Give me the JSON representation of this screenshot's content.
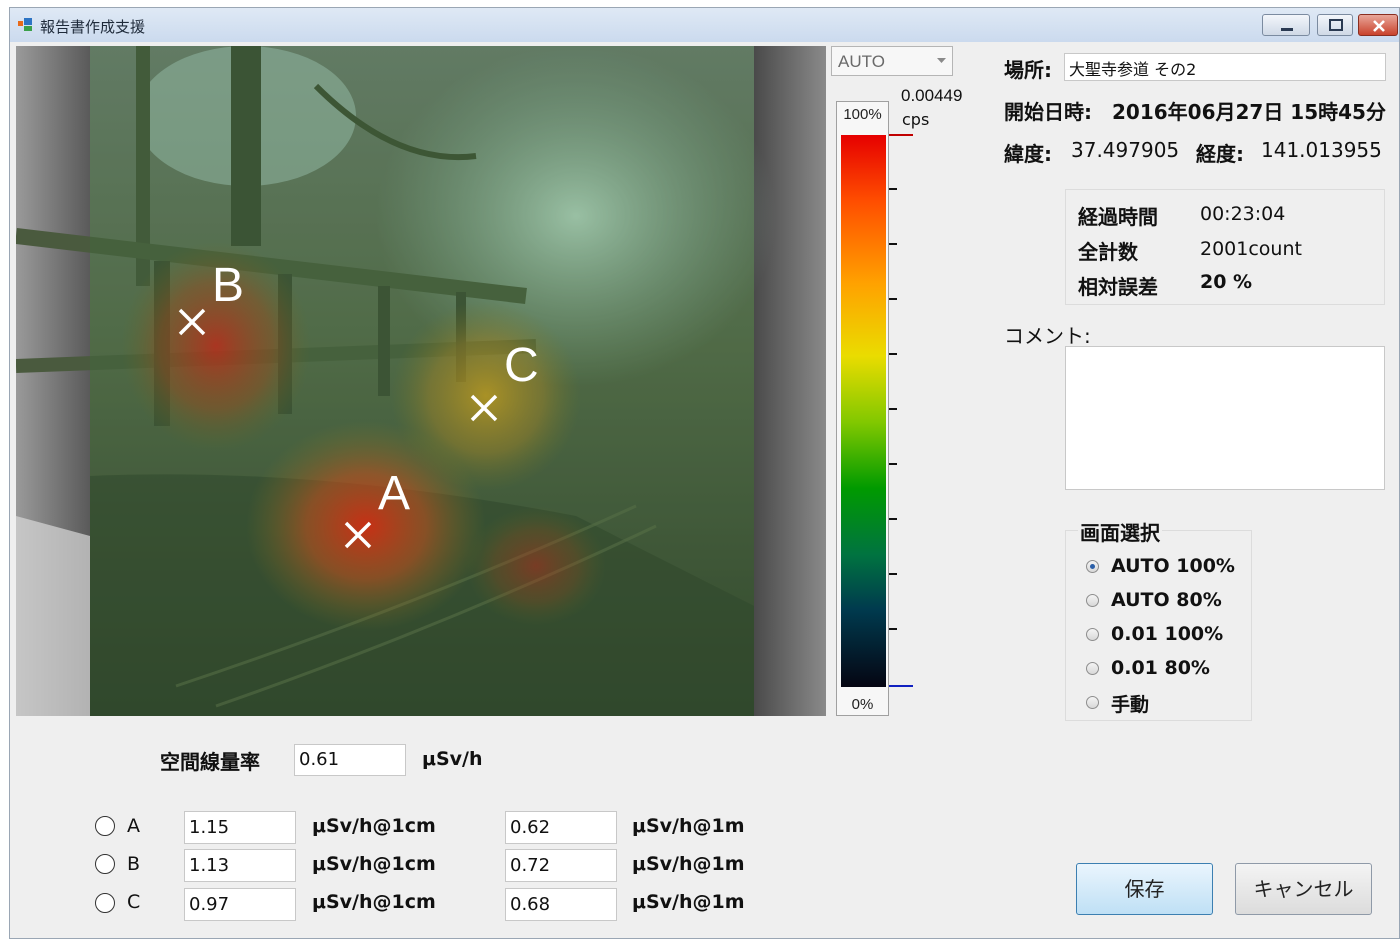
{
  "window": {
    "title": "報告書作成支援",
    "controls": [
      "minimize-icon",
      "maximize-icon",
      "close-icon"
    ]
  },
  "image": {
    "markers": [
      {
        "label": "B"
      },
      {
        "label": "C"
      },
      {
        "label": "A"
      }
    ],
    "marker_symbol": "×"
  },
  "scale": {
    "mode_combo": "AUTO",
    "max_value": "0.00449",
    "unit": "cps",
    "top_label": "100%",
    "bottom_label": "0%",
    "colors": [
      "#e60000",
      "#ffa200",
      "#eadc00",
      "#009a00",
      "#003a4e",
      "#050512"
    ]
  },
  "info": {
    "location_label": "場所:",
    "location_value": "大聖寺参道 その2",
    "start_label": "開始日時:",
    "start_value": "2016年06月27日 15時45分",
    "lat_label": "緯度:",
    "lat_value": "37.497905",
    "lon_label": "経度:",
    "lon_value": "141.013955"
  },
  "stats": {
    "elapsed_label": "経過時間",
    "elapsed_value": "00:23:04",
    "total_label": "全計数",
    "total_value": "2001count",
    "error_label": "相対誤差",
    "error_value": "20 %"
  },
  "comment": {
    "label": "コメント:",
    "value": ""
  },
  "screen_select": {
    "label": "画面選択",
    "options": [
      {
        "label": "AUTO 100%",
        "selected": true
      },
      {
        "label": "AUTO 80%",
        "selected": false
      },
      {
        "label": "0.01 100%",
        "selected": false
      },
      {
        "label": "0.01 80%",
        "selected": false
      },
      {
        "label": "手動",
        "selected": false
      }
    ]
  },
  "air_dose": {
    "label": "空間線量率",
    "value": "0.61",
    "unit": "μSv/h"
  },
  "points": [
    {
      "label": "A",
      "v1cm": "1.15",
      "v1m": "0.62"
    },
    {
      "label": "B",
      "v1cm": "1.13",
      "v1m": "0.72"
    },
    {
      "label": "C",
      "v1cm": "0.97",
      "v1m": "0.68"
    }
  ],
  "units": {
    "cm": "μSv/h@1cm",
    "m": "μSv/h@1m"
  },
  "buttons": {
    "save": "保存",
    "cancel": "キャンセル"
  }
}
